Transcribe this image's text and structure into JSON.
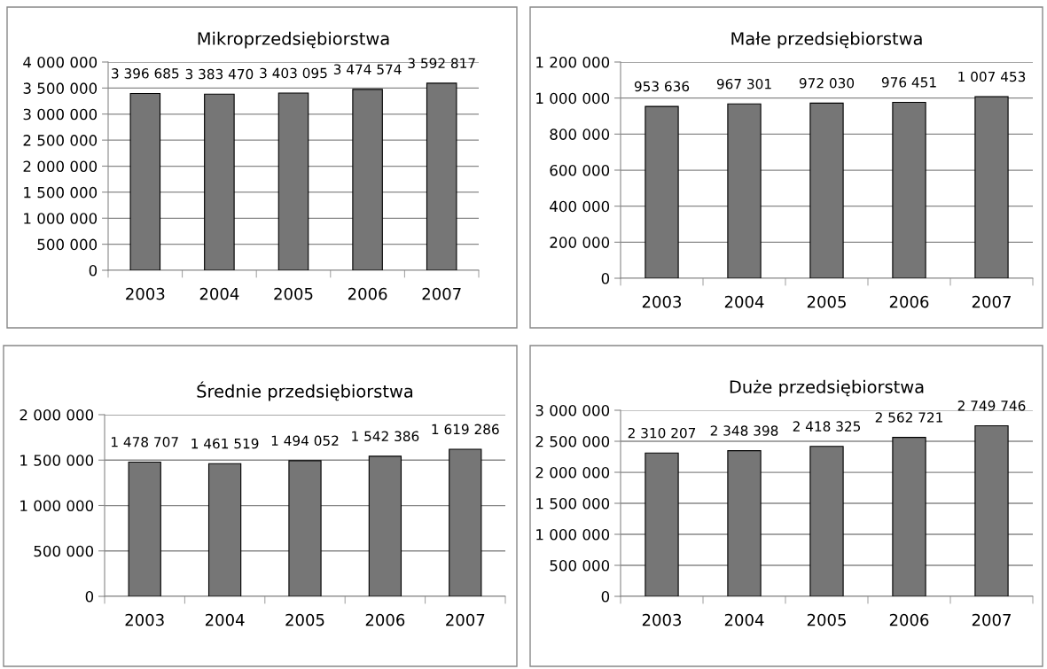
{
  "chart_data": [
    {
      "type": "bar",
      "title": "Mikroprzedsiębiorstwa",
      "categories": [
        "2003",
        "2004",
        "2005",
        "2006",
        "2007"
      ],
      "values": [
        3396685,
        3383470,
        3403095,
        3474574,
        3592817
      ],
      "color": "#767676",
      "value_labels": [
        "3 396 685",
        "3 383 470",
        "3 403 095",
        "3 474 574",
        "3 592 817"
      ],
      "ylim": [
        0,
        4000000
      ],
      "yticks": [
        {
          "value": 0,
          "label": "0"
        },
        {
          "value": 500000,
          "label": "500 000"
        },
        {
          "value": 1000000,
          "label": "1 000 000"
        },
        {
          "value": 1500000,
          "label": "1 500 000"
        },
        {
          "value": 2000000,
          "label": "2 000 000"
        },
        {
          "value": 2500000,
          "label": "2 500 000"
        },
        {
          "value": 3000000,
          "label": "3 000 000"
        },
        {
          "value": 3500000,
          "label": "3 500 000"
        },
        {
          "value": 4000000,
          "label": "4 000 000"
        }
      ],
      "grid": "y"
    },
    {
      "type": "bar",
      "title": "Małe przedsiębiorstwa",
      "categories": [
        "2003",
        "2004",
        "2005",
        "2006",
        "2007"
      ],
      "values": [
        953636,
        967301,
        972030,
        976451,
        1007453
      ],
      "color": "#767676",
      "value_labels": [
        "953 636",
        "967 301",
        "972 030",
        "976 451",
        "1 007 453"
      ],
      "ylim": [
        0,
        1200000
      ],
      "yticks": [
        {
          "value": 0,
          "label": "0"
        },
        {
          "value": 200000,
          "label": "200 000"
        },
        {
          "value": 400000,
          "label": "400 000"
        },
        {
          "value": 600000,
          "label": "600 000"
        },
        {
          "value": 800000,
          "label": "800 000"
        },
        {
          "value": 1000000,
          "label": "1 000 000"
        },
        {
          "value": 1200000,
          "label": "1 200 000"
        }
      ],
      "grid": "y"
    },
    {
      "type": "bar",
      "title": "Średnie przedsiębiorstwa",
      "categories": [
        "2003",
        "2004",
        "2005",
        "2006",
        "2007"
      ],
      "values": [
        1478707,
        1461519,
        1494052,
        1542386,
        1619286
      ],
      "color": "#767676",
      "value_labels": [
        "1 478 707",
        "1 461 519",
        "1 494 052",
        "1 542 386",
        "1 619 286"
      ],
      "ylim": [
        0,
        2000000
      ],
      "yticks": [
        {
          "value": 0,
          "label": "0"
        },
        {
          "value": 500000,
          "label": "500 000"
        },
        {
          "value": 1000000,
          "label": "1 000 000"
        },
        {
          "value": 1500000,
          "label": "1 500 000"
        },
        {
          "value": 2000000,
          "label": "2 000 000"
        }
      ],
      "grid": "y"
    },
    {
      "type": "bar",
      "title": "Duże przedsiębiorstwa",
      "categories": [
        "2003",
        "2004",
        "2005",
        "2006",
        "2007"
      ],
      "values": [
        2310207,
        2348398,
        2418325,
        2562721,
        2749746
      ],
      "color": "#767676",
      "value_labels": [
        "2 310 207",
        "2 348 398",
        "2 418 325",
        "2 562 721",
        "2 749 746"
      ],
      "ylim": [
        0,
        3000000
      ],
      "yticks": [
        {
          "value": 0,
          "label": "0"
        },
        {
          "value": 500000,
          "label": "500 000"
        },
        {
          "value": 1000000,
          "label": "1 000 000"
        },
        {
          "value": 1500000,
          "label": "1 500 000"
        },
        {
          "value": 2000000,
          "label": "2 000 000"
        },
        {
          "value": 2500000,
          "label": "2 500 000"
        },
        {
          "value": 3000000,
          "label": "3 000 000"
        }
      ],
      "grid": "y"
    }
  ]
}
